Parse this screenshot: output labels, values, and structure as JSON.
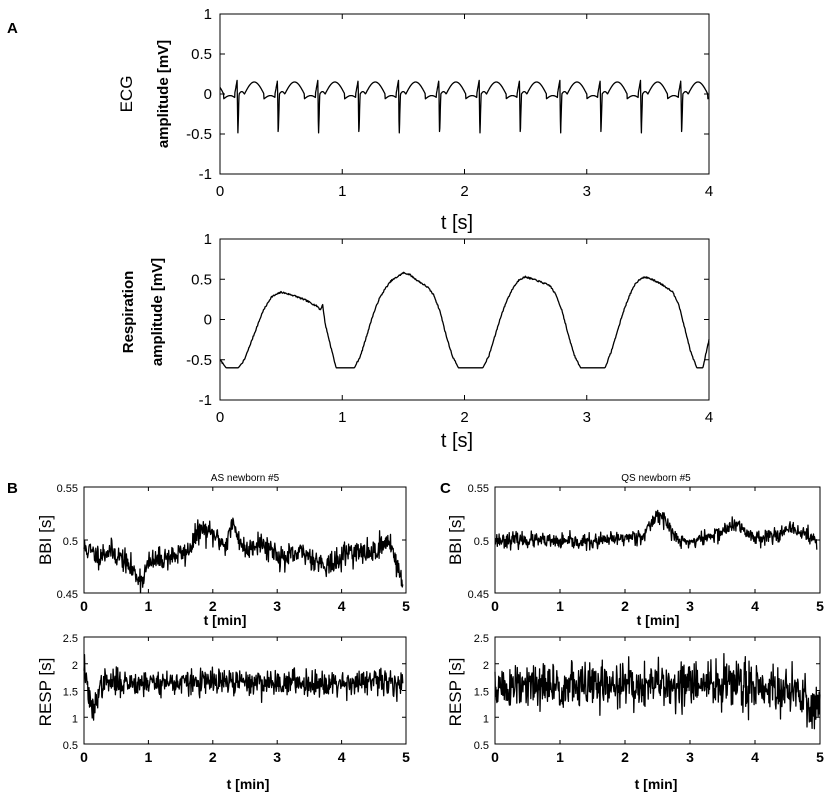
{
  "panel_labels": [
    "A",
    "B",
    "C"
  ],
  "chart_data": [
    {
      "id": "ecg",
      "type": "line",
      "title": "",
      "xlabel": "t [s]",
      "ylabel": "ECG",
      "ylabel2": "amplitude [mV]",
      "xlim": [
        0,
        4
      ],
      "ylim": [
        -1,
        1
      ],
      "xticks": [
        "0",
        "1",
        "2",
        "3",
        "4"
      ],
      "yticks": [
        "-1",
        "-0.5",
        "0",
        "0.5",
        "1"
      ],
      "grid": false,
      "series": [
        {
          "shape": "ecg",
          "period_s": 0.33,
          "first_beat_s": 0.14,
          "r_peak_mV": 0.17,
          "s_trough_mV": -0.52,
          "baseline_mV": 0.0,
          "t_wave_mV": 0.15
        }
      ]
    },
    {
      "id": "resp",
      "type": "line",
      "title": "",
      "xlabel": "t [s]",
      "ylabel": "Respiration",
      "ylabel2": "amplitude [mV]",
      "xlim": [
        0,
        4
      ],
      "ylim": [
        -1,
        1
      ],
      "xticks": [
        "0",
        "1",
        "2",
        "3",
        "4"
      ],
      "yticks": [
        "-1",
        "-0.5",
        "0",
        "0.5",
        "1"
      ],
      "grid": false,
      "series": [
        {
          "shape": "resp",
          "x": [
            -0.05,
            0.0,
            0.05,
            0.1,
            0.15,
            0.2,
            0.25,
            0.3,
            0.35,
            0.42,
            0.5,
            0.6,
            0.7,
            0.8,
            0.82,
            0.84,
            0.86,
            0.9,
            0.95,
            1.0,
            1.05,
            1.1,
            1.15,
            1.2,
            1.25,
            1.3,
            1.35,
            1.4,
            1.5,
            1.55,
            1.6,
            1.65,
            1.7,
            1.75,
            1.8,
            1.85,
            1.9,
            1.95,
            2.0,
            2.05,
            2.1,
            2.15,
            2.2,
            2.25,
            2.3,
            2.35,
            2.4,
            2.45,
            2.5,
            2.6,
            2.7,
            2.75,
            2.8,
            2.85,
            2.9,
            2.95,
            3.0,
            3.05,
            3.1,
            3.15,
            3.2,
            3.25,
            3.3,
            3.35,
            3.4,
            3.45,
            3.5,
            3.6,
            3.7,
            3.75,
            3.8,
            3.85,
            3.9,
            3.95,
            4.0
          ],
          "y": [
            -0.38,
            -0.5,
            -0.6,
            -0.6,
            -0.6,
            -0.5,
            -0.3,
            -0.1,
            0.1,
            0.28,
            0.34,
            0.3,
            0.24,
            0.16,
            0.12,
            0.18,
            -0.05,
            -0.3,
            -0.6,
            -0.6,
            -0.6,
            -0.6,
            -0.45,
            -0.2,
            0.05,
            0.25,
            0.38,
            0.48,
            0.58,
            0.56,
            0.5,
            0.45,
            0.4,
            0.3,
            0.1,
            -0.2,
            -0.45,
            -0.6,
            -0.6,
            -0.6,
            -0.6,
            -0.6,
            -0.45,
            -0.2,
            0.05,
            0.25,
            0.4,
            0.5,
            0.53,
            0.48,
            0.42,
            0.3,
            0.1,
            -0.2,
            -0.45,
            -0.6,
            -0.6,
            -0.6,
            -0.6,
            -0.6,
            -0.4,
            -0.15,
            0.1,
            0.3,
            0.45,
            0.52,
            0.52,
            0.45,
            0.35,
            0.2,
            -0.1,
            -0.4,
            -0.6,
            -0.6,
            -0.25
          ]
        }
      ]
    },
    {
      "id": "bbi-as",
      "type": "line",
      "title": "AS newborn #5",
      "xlabel": "t [min]",
      "ylabel": "BBI [s]",
      "xlim": [
        0,
        5
      ],
      "ylim": [
        0.45,
        0.55
      ],
      "xticks": [
        "0",
        "1",
        "2",
        "3",
        "4",
        "5"
      ],
      "yticks": [
        "0.45",
        "0.5",
        "0.55"
      ],
      "grid": false,
      "series": [
        {
          "shape": "noise",
          "seed": 11,
          "noise_sd": 0.0055,
          "x": [
            0,
            0.2,
            0.4,
            0.6,
            0.8,
            0.9,
            1.0,
            1.3,
            1.6,
            1.8,
            2.0,
            2.2,
            2.3,
            2.5,
            2.7,
            2.9,
            3.1,
            3.4,
            3.7,
            3.9,
            4.1,
            4.4,
            4.6,
            4.75,
            4.85,
            4.95
          ],
          "y": [
            0.493,
            0.485,
            0.49,
            0.482,
            0.468,
            0.462,
            0.478,
            0.484,
            0.488,
            0.51,
            0.505,
            0.495,
            0.515,
            0.49,
            0.498,
            0.492,
            0.482,
            0.488,
            0.478,
            0.477,
            0.49,
            0.487,
            0.493,
            0.5,
            0.478,
            0.458
          ]
        }
      ]
    },
    {
      "id": "bbi-qs",
      "type": "line",
      "title": "QS newborn #5",
      "xlabel": "t [min]",
      "ylabel": "BBI [s]",
      "xlim": [
        0,
        5
      ],
      "ylim": [
        0.45,
        0.55
      ],
      "xticks": [
        "0",
        "1",
        "2",
        "3",
        "4",
        "5"
      ],
      "yticks": [
        "0.45",
        "0.5",
        "0.55"
      ],
      "grid": false,
      "series": [
        {
          "shape": "noise",
          "seed": 23,
          "noise_sd": 0.0035,
          "x": [
            0,
            0.5,
            1.0,
            1.5,
            2.0,
            2.3,
            2.5,
            2.6,
            2.8,
            3.0,
            3.4,
            3.7,
            3.85,
            4.0,
            4.3,
            4.6,
            4.8,
            4.95
          ],
          "y": [
            0.5,
            0.5,
            0.498,
            0.498,
            0.502,
            0.505,
            0.525,
            0.52,
            0.5,
            0.498,
            0.505,
            0.515,
            0.508,
            0.502,
            0.505,
            0.51,
            0.505,
            0.498
          ]
        }
      ]
    },
    {
      "id": "resp-as",
      "type": "line",
      "title": "",
      "xlabel": "t [min]",
      "ylabel": "RESP [s]",
      "xlim": [
        0,
        5
      ],
      "ylim": [
        0.5,
        2.5
      ],
      "xticks": [
        "0",
        "1",
        "2",
        "3",
        "4",
        "5"
      ],
      "yticks": [
        "0.5",
        "1",
        "1.5",
        "2",
        "2.5"
      ],
      "grid": false,
      "series": [
        {
          "shape": "noise",
          "seed": 37,
          "noise_sd": 0.12,
          "x": [
            0,
            0.05,
            0.1,
            0.15,
            0.2,
            0.3,
            1,
            2,
            3,
            4,
            4.95
          ],
          "y": [
            2.0,
            1.6,
            1.2,
            1.1,
            1.4,
            1.65,
            1.65,
            1.65,
            1.65,
            1.65,
            1.65
          ]
        }
      ]
    },
    {
      "id": "resp-qs",
      "type": "line",
      "title": "",
      "xlabel": "t [min]",
      "ylabel": "RESP [s]",
      "xlim": [
        0,
        5
      ],
      "ylim": [
        0.5,
        2.5
      ],
      "xticks": [
        "0",
        "1",
        "2",
        "3",
        "4",
        "5"
      ],
      "yticks": [
        "0.5",
        "1",
        "1.5",
        "2",
        "2.5"
      ],
      "grid": false,
      "series": [
        {
          "shape": "noise",
          "seed": 51,
          "noise_sd": 0.22,
          "x": [
            0,
            0.5,
            1,
            2,
            3,
            4,
            4.5,
            4.8,
            5.0
          ],
          "y": [
            1.55,
            1.55,
            1.58,
            1.6,
            1.6,
            1.62,
            1.5,
            1.3,
            1.2
          ]
        }
      ]
    }
  ]
}
